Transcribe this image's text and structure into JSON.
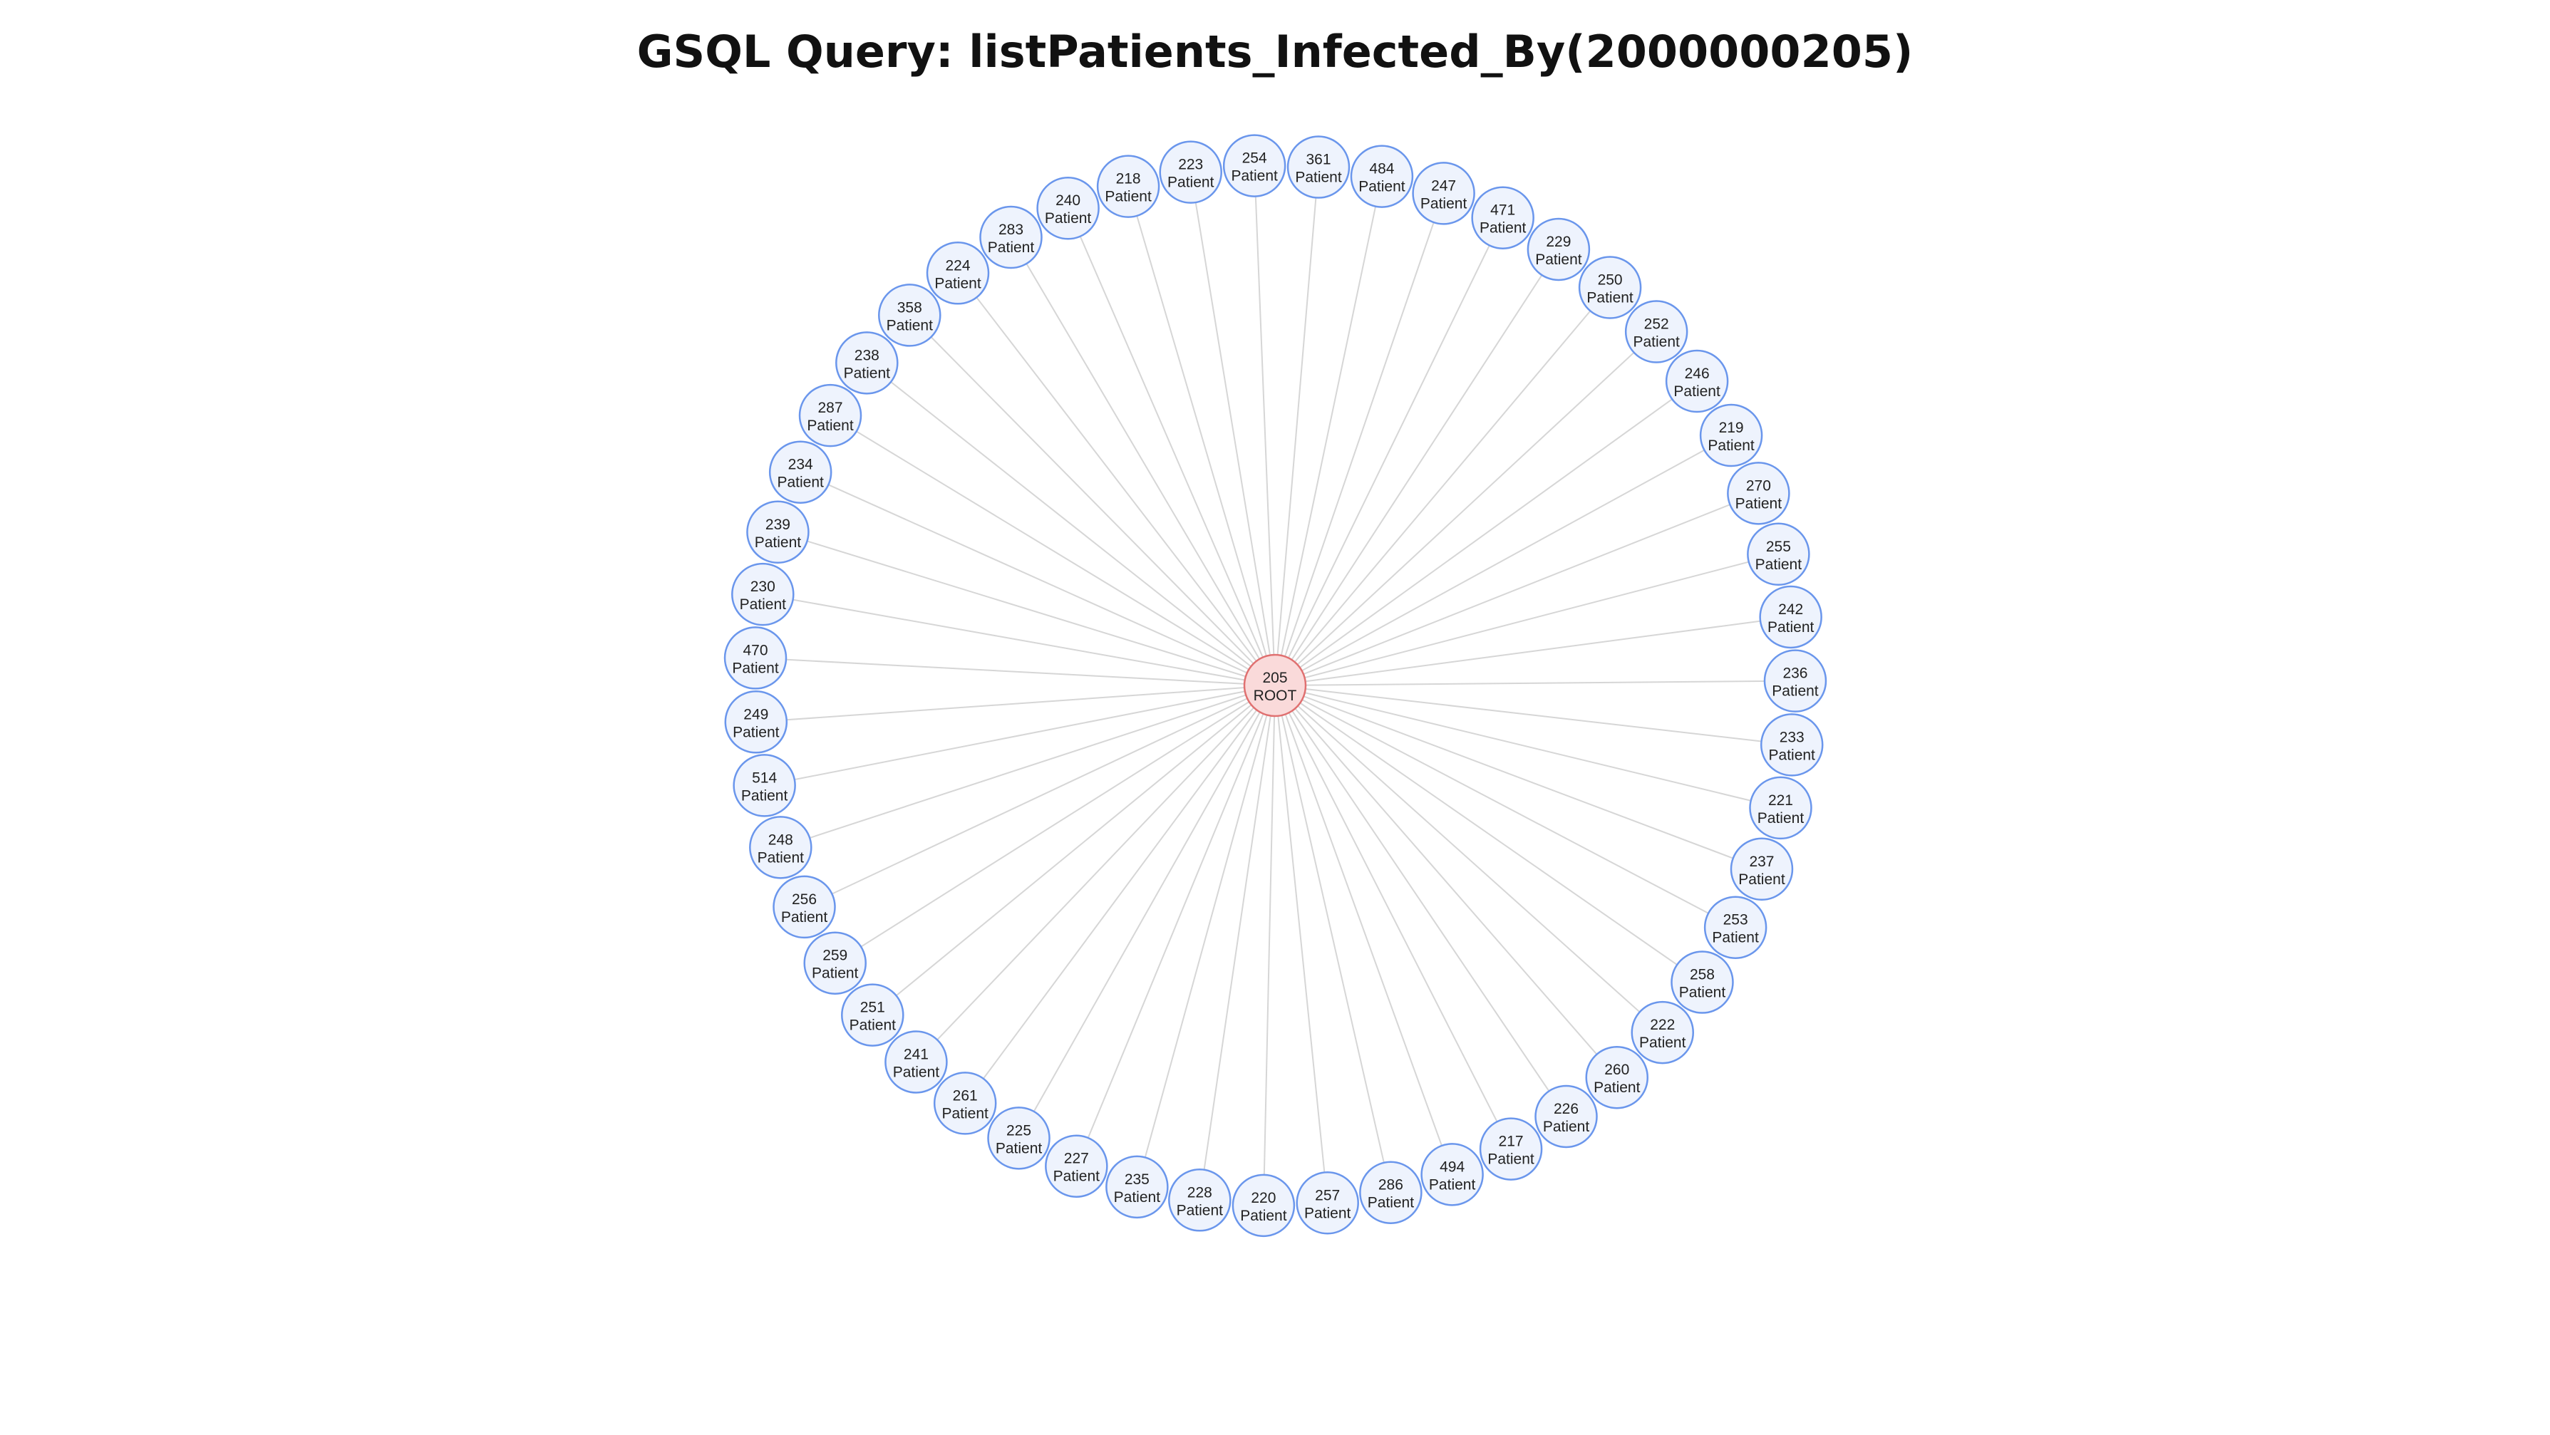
{
  "title": "GSQL Query: listPatients_Infected_By(2000000205)",
  "colors": {
    "root_fill": "#fadada",
    "root_stroke": "#e07070",
    "patient_fill": "#eef3fd",
    "patient_stroke": "#6a96ec",
    "edge": "#d6d6d6"
  },
  "root": {
    "id": "205",
    "label": "ROOT"
  },
  "patients": [
    {
      "id": "236",
      "label": "Patient"
    },
    {
      "id": "233",
      "label": "Patient"
    },
    {
      "id": "221",
      "label": "Patient"
    },
    {
      "id": "237",
      "label": "Patient"
    },
    {
      "id": "253",
      "label": "Patient"
    },
    {
      "id": "258",
      "label": "Patient"
    },
    {
      "id": "222",
      "label": "Patient"
    },
    {
      "id": "260",
      "label": "Patient"
    },
    {
      "id": "226",
      "label": "Patient"
    },
    {
      "id": "217",
      "label": "Patient"
    },
    {
      "id": "494",
      "label": "Patient"
    },
    {
      "id": "286",
      "label": "Patient"
    },
    {
      "id": "257",
      "label": "Patient"
    },
    {
      "id": "220",
      "label": "Patient"
    },
    {
      "id": "228",
      "label": "Patient"
    },
    {
      "id": "235",
      "label": "Patient"
    },
    {
      "id": "227",
      "label": "Patient"
    },
    {
      "id": "225",
      "label": "Patient"
    },
    {
      "id": "261",
      "label": "Patient"
    },
    {
      "id": "241",
      "label": "Patient"
    },
    {
      "id": "251",
      "label": "Patient"
    },
    {
      "id": "259",
      "label": "Patient"
    },
    {
      "id": "256",
      "label": "Patient"
    },
    {
      "id": "248",
      "label": "Patient"
    },
    {
      "id": "514",
      "label": "Patient"
    },
    {
      "id": "249",
      "label": "Patient"
    },
    {
      "id": "470",
      "label": "Patient"
    },
    {
      "id": "230",
      "label": "Patient"
    },
    {
      "id": "239",
      "label": "Patient"
    },
    {
      "id": "234",
      "label": "Patient"
    },
    {
      "id": "287",
      "label": "Patient"
    },
    {
      "id": "238",
      "label": "Patient"
    },
    {
      "id": "358",
      "label": "Patient"
    },
    {
      "id": "224",
      "label": "Patient"
    },
    {
      "id": "283",
      "label": "Patient"
    },
    {
      "id": "240",
      "label": "Patient"
    },
    {
      "id": "218",
      "label": "Patient"
    },
    {
      "id": "223",
      "label": "Patient"
    },
    {
      "id": "254",
      "label": "Patient"
    },
    {
      "id": "361",
      "label": "Patient"
    },
    {
      "id": "484",
      "label": "Patient"
    },
    {
      "id": "247",
      "label": "Patient"
    },
    {
      "id": "471",
      "label": "Patient"
    },
    {
      "id": "229",
      "label": "Patient"
    },
    {
      "id": "250",
      "label": "Patient"
    },
    {
      "id": "252",
      "label": "Patient"
    },
    {
      "id": "246",
      "label": "Patient"
    },
    {
      "id": "219",
      "label": "Patient"
    },
    {
      "id": "270",
      "label": "Patient"
    },
    {
      "id": "255",
      "label": "Patient"
    },
    {
      "id": "242",
      "label": "Patient"
    }
  ]
}
